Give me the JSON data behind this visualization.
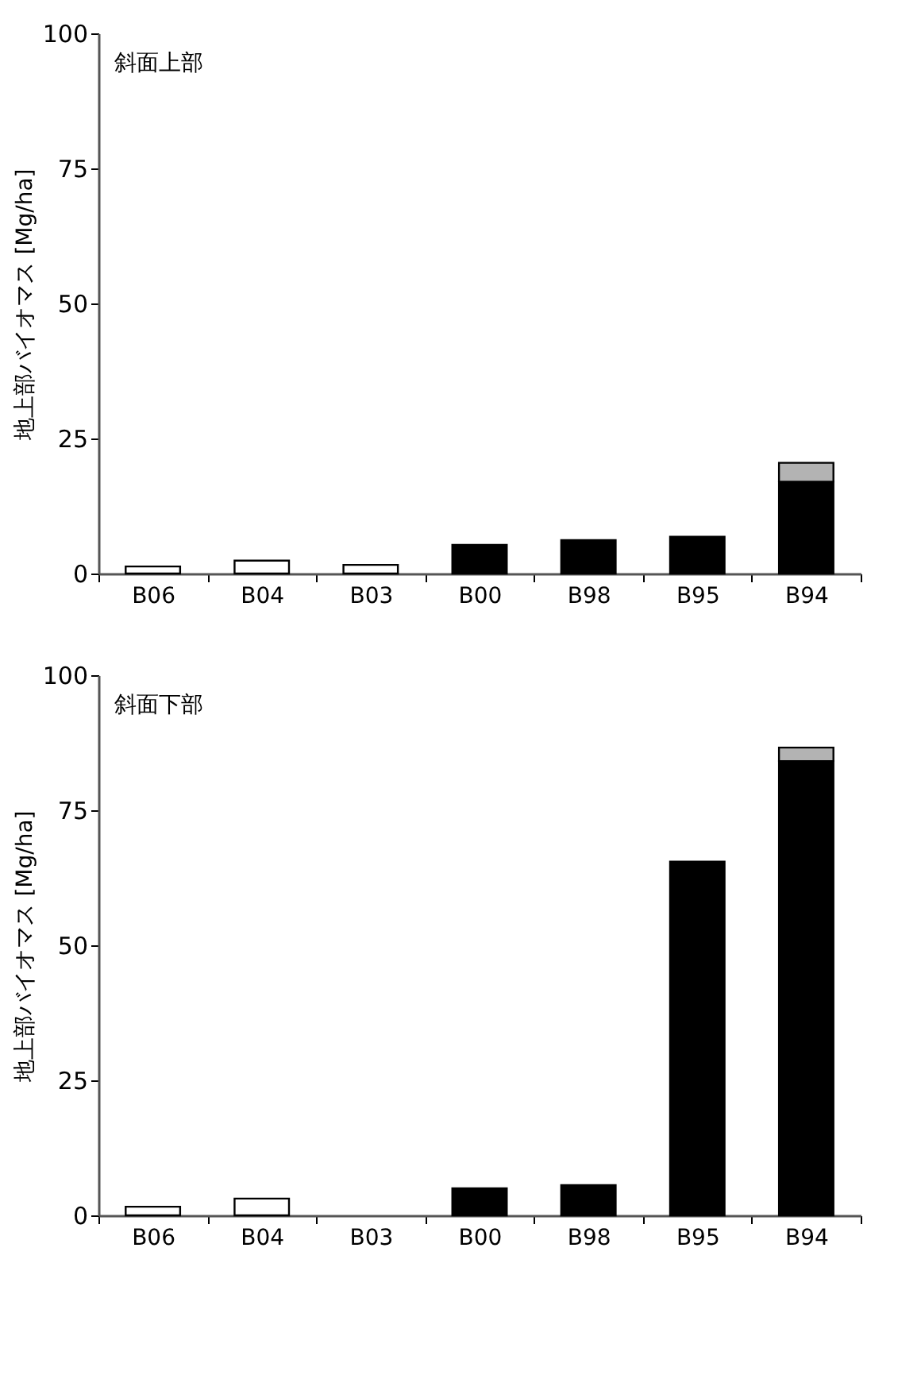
{
  "chart_data": [
    {
      "type": "bar",
      "stacked": true,
      "annotations": [
        "斜面上部"
      ],
      "ylabel": "地上部バイオマス [Mg/ha]",
      "categories": [
        "B06",
        "B04",
        "B03",
        "B00",
        "B98",
        "B95",
        "B94"
      ],
      "ylim": [
        0,
        100
      ],
      "yticks": [
        0,
        25,
        50,
        75,
        100
      ],
      "grid": false,
      "legend": false,
      "series": [
        {
          "color": "#ffffff",
          "values": [
            1.3,
            2.4,
            1.6,
            null,
            null,
            null,
            null
          ]
        },
        {
          "color": "#000000",
          "values": [
            null,
            null,
            null,
            5.3,
            6.2,
            6.8,
            17.0
          ]
        },
        {
          "color": "#b3b3b3",
          "values": [
            null,
            null,
            null,
            null,
            null,
            null,
            3.5
          ]
        }
      ]
    },
    {
      "type": "bar",
      "stacked": true,
      "annotations": [
        "斜面下部"
      ],
      "ylabel": "地上部バイオマス [Mg/ha]",
      "categories": [
        "B06",
        "B04",
        "B03",
        "B00",
        "B98",
        "B95",
        "B94"
      ],
      "ylim": [
        0,
        100
      ],
      "yticks": [
        0,
        25,
        50,
        75,
        100
      ],
      "grid": false,
      "legend": false,
      "series": [
        {
          "color": "#ffffff",
          "values": [
            1.6,
            3.1,
            null,
            null,
            null,
            null,
            null
          ]
        },
        {
          "color": "#000000",
          "values": [
            null,
            null,
            null,
            5.0,
            5.6,
            65.5,
            84.1
          ]
        },
        {
          "color": "#b3b3b3",
          "values": [
            null,
            null,
            null,
            null,
            null,
            null,
            2.5
          ]
        }
      ]
    }
  ]
}
